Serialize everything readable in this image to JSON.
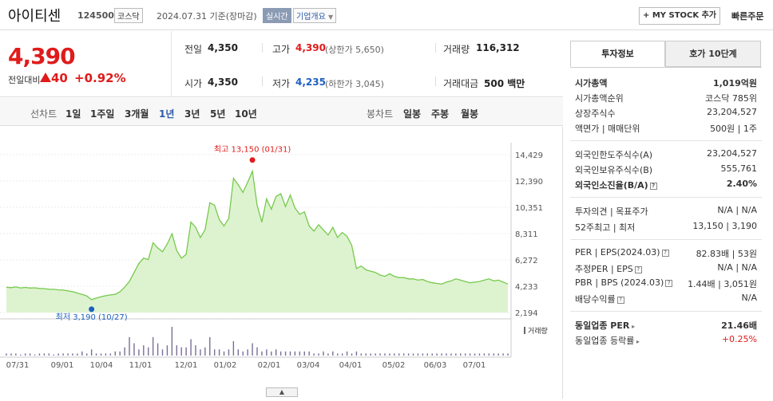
{
  "header": {
    "stock_name": "아이티센",
    "stock_code": "124500",
    "market": "코스닥",
    "date_text": "2024.07.31 기준(장마감)",
    "live_label": "실시간",
    "overview_label": "기업개요",
    "mystock_label": "+ MY STOCK 추가",
    "quick_order_label": "빠른주문"
  },
  "price": {
    "current": "4,390",
    "vs_prev_label": "전일대비",
    "change": "40",
    "change_pct": "+0.92%"
  },
  "quote": {
    "prev_label": "전일",
    "prev": "4,350",
    "high_label": "고가",
    "high": "4,390",
    "upper_limit": "(상한가 5,650)",
    "volume_label": "거래량",
    "volume": "116,312",
    "open_label": "시가",
    "open": "4,350",
    "low_label": "저가",
    "low": "4,235",
    "lower_limit": "(하한가 3,045)",
    "amount_label": "거래대금",
    "amount": "500 백만"
  },
  "period_bar": {
    "line_title": "선차트",
    "line_items": [
      "1일",
      "1주일",
      "3개월",
      "1년",
      "3년",
      "5년",
      "10년"
    ],
    "selected": "1년",
    "candle_title": "봉차트",
    "candle_items": [
      "일봉",
      "주봉",
      "월봉"
    ]
  },
  "chart_data": {
    "type": "area",
    "ylim": [
      2194,
      14429
    ],
    "y_ticks": [
      "14,429",
      "12,390",
      "10,351",
      "8,311",
      "6,272",
      "4,233",
      "2,194"
    ],
    "x_ticks": [
      "07/31",
      "09/01",
      "10/04",
      "11/01",
      "12/01",
      "01/02",
      "02/01",
      "03/04",
      "04/01",
      "05/02",
      "06/03",
      "07/01"
    ],
    "max_label": "최고 13,150 (01/31)",
    "min_label": "최저 3,190 (10/27)",
    "volume_label": "거래량",
    "line_color": "#77c94d",
    "fill_color": "#ddf3cf",
    "series": [
      {
        "values": [
          4150,
          4120,
          4180,
          4100,
          4140,
          4090,
          4110,
          4060,
          4050,
          4000,
          3990,
          3950,
          3930,
          3870,
          3810,
          3700,
          3600,
          3480,
          3190,
          3310,
          3420,
          3500,
          3560,
          3600,
          3800,
          4160,
          4600,
          5300,
          6000,
          6400,
          6300,
          7600,
          7200,
          6900,
          7500,
          8300,
          7000,
          6400,
          6700,
          9200,
          8800,
          8000,
          8600,
          10700,
          10500,
          9400,
          8900,
          9500,
          12600,
          12100,
          11500,
          12300,
          13150,
          10500,
          9200,
          11000,
          10200,
          11200,
          11400,
          10400,
          11300,
          10300,
          9800,
          10000,
          8900,
          8500,
          9000,
          8600,
          8200,
          8800,
          8000,
          8400,
          8100,
          7400,
          5600,
          5800,
          5500,
          5400,
          5300,
          5100,
          5000,
          5200,
          5000,
          4900,
          4900,
          4800,
          4800,
          4700,
          4750,
          4600,
          4500,
          4450,
          4400,
          4550,
          4650,
          4800,
          4700,
          4600,
          4500,
          4550,
          4600,
          4700,
          4800,
          4650,
          4700,
          4550,
          4400
        ]
      }
    ],
    "volume": [
      1,
      1,
      1,
      0.5,
      1,
      1,
      0.5,
      1,
      1,
      1,
      0.5,
      1,
      1,
      1,
      1,
      1,
      2,
      1,
      3,
      1,
      1,
      1,
      1,
      2,
      2,
      4,
      9,
      6,
      3,
      5,
      4,
      9,
      6,
      3,
      5,
      14,
      5,
      4,
      4,
      8,
      5,
      3,
      4,
      9,
      3,
      3,
      2,
      3,
      7,
      3,
      2,
      3,
      6,
      4,
      2,
      3,
      2,
      3,
      2,
      2,
      2,
      2,
      2,
      2,
      2,
      1,
      1,
      2,
      1,
      2,
      1,
      1,
      2,
      1,
      2,
      1,
      1,
      1,
      1,
      1,
      1,
      1,
      1,
      1,
      1,
      1,
      1,
      1,
      1,
      1,
      1,
      1,
      1,
      1,
      1,
      1,
      1,
      1,
      1,
      1,
      1,
      1,
      1,
      1,
      1,
      1,
      1
    ]
  },
  "right_panel": {
    "tabs": [
      "투자정보",
      "호가 10단계"
    ],
    "section1": [
      {
        "label": "시가총액",
        "value": "1,019억원",
        "bold": true
      },
      {
        "label": "시가총액순위",
        "value": "코스닥 785위"
      },
      {
        "label": "상장주식수",
        "value": "23,204,527"
      },
      {
        "label": "액면가 | 매매단위",
        "value": "500원 | 1주"
      }
    ],
    "section2": [
      {
        "label": "외국인한도주식수(A)",
        "value": "23,204,527"
      },
      {
        "label": "외국인보유주식수(B)",
        "value": "555,761"
      },
      {
        "label": "외국인소진율(B/A)",
        "value": "2.40%",
        "bold": true
      }
    ],
    "section3": [
      {
        "label": "투자의견 | 목표주가",
        "value": "N/A | N/A"
      },
      {
        "label": "52주최고 | 최저",
        "value": "13,150 | 3,190"
      }
    ],
    "section4": [
      {
        "label": "PER | EPS(2024.03)",
        "value": "82.83배 | 53원"
      },
      {
        "label": "추정PER | EPS",
        "value": "N/A | N/A"
      },
      {
        "label": "PBR | BPS (2024.03)",
        "value": "1.44배 | 3,051원"
      },
      {
        "label": "배당수익률",
        "value": "N/A"
      }
    ],
    "section5": [
      {
        "label": "동일업종 PER",
        "value": "21.46배",
        "bold": true
      },
      {
        "label": "동일업종 등락률",
        "value": "+0.25%"
      }
    ]
  },
  "colors": {
    "up": "#e01b1b",
    "down": "#1d5fc1",
    "accent": "#2f5aa8"
  }
}
